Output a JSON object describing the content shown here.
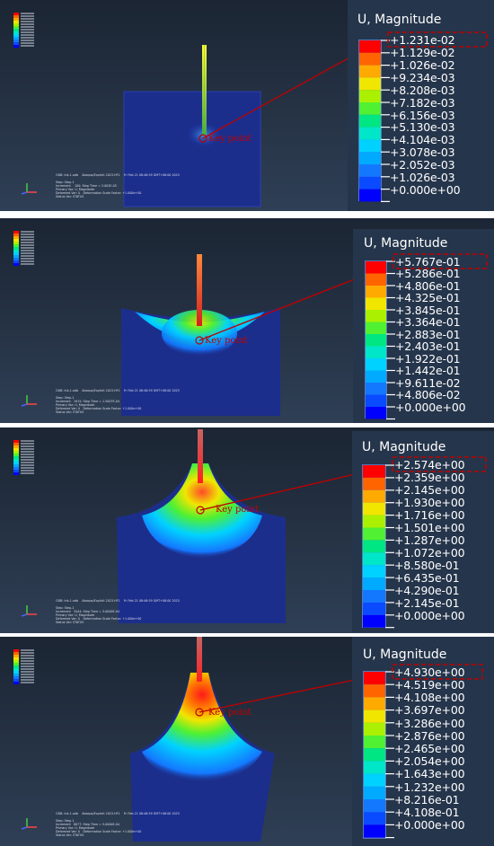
{
  "legend_title": "U, Magnitude",
  "key_point_label": "Key point",
  "colors": {
    "background_top": "#1b2533",
    "background_bottom": "#2f3f55",
    "key_point_red": "#c00000",
    "scale": [
      "#0000ff",
      "#0a4bff",
      "#1478ff",
      "#00aaff",
      "#00d2ff",
      "#00e6c8",
      "#00e682",
      "#50f032",
      "#aaf000",
      "#f0e600",
      "#ffaa00",
      "#ff6400",
      "#ff0000"
    ]
  },
  "panels": [
    {
      "legend_values": [
        "+1.231e-02",
        "+1.129e-02",
        "+1.026e-02",
        "+9.234e-03",
        "+8.208e-03",
        "+7.182e-03",
        "+6.156e-03",
        "+5.130e-03",
        "+4.104e-03",
        "+3.078e-03",
        "+2.052e-03",
        "+1.026e-03",
        "+0.000e+00"
      ],
      "info_lines": [
        "ODB: Ink-1.odb    Abaqus/Explicit 2023.HF1    Fri Feb 21 08:46:59 GMT+08:00 2025",
        "",
        "Step: Step-1",
        "Increment    100: Step Time = 3.003E-05",
        "Primary Var: U, Magnitude",
        "Deformed Var: U   Deformation Scale Factor: +1.000e+00",
        "Status Var: STATUS"
      ]
    },
    {
      "legend_values": [
        "+5.767e-01",
        "+5.286e-01",
        "+4.806e-01",
        "+4.325e-01",
        "+3.845e-01",
        "+3.364e-01",
        "+2.883e-01",
        "+2.403e-01",
        "+1.922e-01",
        "+1.442e-01",
        "+9.611e-02",
        "+4.806e-02",
        "+0.000e+00"
      ],
      "info_lines": [
        "ODB: Ink-1.odb    Abaqus/Explicit 2023.HF1    Fri Feb 21 08:46:59 GMT+08:00 2025",
        "",
        "Step: Step-1",
        "Increment   1915: Step Time = 1.5007E-04",
        "Primary Var: U, Magnitude",
        "Deformed Var: U   Deformation Scale Factor: +1.000e+00",
        "Status Var: STATUS"
      ]
    },
    {
      "legend_values": [
        "+2.574e+00",
        "+2.359e+00",
        "+2.145e+00",
        "+1.930e+00",
        "+1.716e+00",
        "+1.501e+00",
        "+1.287e+00",
        "+1.072e+00",
        "+8.580e-01",
        "+6.435e-01",
        "+4.290e-01",
        "+2.145e-01",
        "+0.000e+00"
      ],
      "info_lines": [
        "ODB: Ink-1.odb    Abaqus/Explicit 2023.HF1    Fri Feb 21 08:46:59 GMT+08:00 2025",
        "",
        "Step: Step-1",
        "Increment   3444: Step Time = 3.0000E-04",
        "Primary Var: U, Magnitude",
        "Deformed Var: U   Deformation Scale Factor: +1.000e+00",
        "Status Var: STATUS"
      ]
    },
    {
      "legend_values": [
        "+4.930e+00",
        "+4.519e+00",
        "+4.108e+00",
        "+3.697e+00",
        "+3.286e+00",
        "+2.876e+00",
        "+2.465e+00",
        "+2.054e+00",
        "+1.643e+00",
        "+1.232e+00",
        "+8.216e-01",
        "+4.108e-01",
        "+0.000e+00"
      ],
      "info_lines": [
        "ODB: Ink-1.odb    Abaqus/Explicit 2023.HF1    Fri Feb 21 08:46:59 GMT+08:00 2025",
        "",
        "Step: Step-1",
        "Increment   8077: Step Time = 5.0000E-04",
        "Primary Var: U, Magnitude",
        "Deformed Var: U   Deformation Scale Factor: +1.000e+00",
        "Status Var: STATUS"
      ]
    }
  ]
}
